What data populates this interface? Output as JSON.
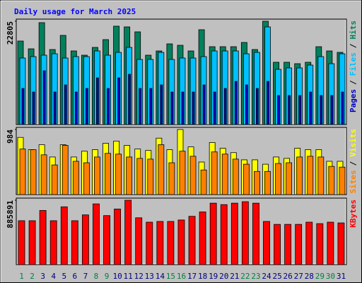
{
  "chart_data": [
    {
      "type": "bar",
      "title": "Daily usage for March 2025",
      "ylim": [
        0,
        22805
      ],
      "yticks": [
        22805
      ],
      "legend_separator": "/",
      "series": [
        {
          "name": "Hits",
          "color": "#00805c",
          "values": [
            18432,
            16713,
            22493,
            16557,
            19681,
            16245,
            15308,
            17026,
            18744,
            21712,
            21556,
            20462,
            15308,
            16245,
            17807,
            17494,
            16245,
            20931,
            17182,
            17182,
            17182,
            18119,
            16557,
            22805,
            13746,
            13746,
            13433,
            13746,
            17182,
            16245,
            15932
          ]
        },
        {
          "name": "Files",
          "color": "#00c0ff",
          "values": [
            14683,
            14995,
            15308,
            15620,
            14683,
            14995,
            14995,
            16245,
            15308,
            15932,
            17026,
            14370,
            14370,
            15932,
            14370,
            14683,
            14683,
            14995,
            16245,
            16245,
            16245,
            15620,
            15932,
            21556,
            12184,
            12496,
            12496,
            13121,
            14995,
            13433,
            15620
          ]
        },
        {
          "name": "Pages",
          "color": "#0000c0",
          "values": [
            7966,
            7185,
            11871,
            7185,
            8747,
            7185,
            7966,
            10309,
            7966,
            10309,
            11090,
            7966,
            7966,
            8747,
            7185,
            7185,
            7185,
            8747,
            7185,
            7966,
            9528,
            8747,
            7966,
            9528,
            6404,
            6404,
            6404,
            7185,
            6404,
            6404,
            7185
          ]
        }
      ]
    },
    {
      "type": "bar",
      "ylim": [
        0,
        984
      ],
      "yticks": [
        984
      ],
      "legend_separator": "/",
      "series": [
        {
          "name": "Visits",
          "color": "#ffff00",
          "values": [
            864,
            678,
            754,
            568,
            754,
            568,
            656,
            678,
            776,
            809,
            743,
            689,
            667,
            853,
            678,
            984,
            721,
            492,
            787,
            700,
            634,
            525,
            525,
            459,
            568,
            547,
            700,
            678,
            678,
            503,
            503
          ]
        },
        {
          "name": "Sites",
          "color": "#ff8000",
          "values": [
            689,
            678,
            601,
            448,
            743,
            503,
            481,
            568,
            623,
            612,
            568,
            547,
            536,
            754,
            481,
            656,
            579,
            372,
            645,
            612,
            536,
            459,
            350,
            350,
            470,
            481,
            568,
            579,
            568,
            426,
            415
          ]
        }
      ]
    },
    {
      "type": "bar",
      "ylim": [
        0,
        885891
      ],
      "yticks": [
        885891
      ],
      "categories": [
        "1",
        "2",
        "3",
        "4",
        "5",
        "6",
        "7",
        "8",
        "9",
        "10",
        "11",
        "12",
        "13",
        "14",
        "15",
        "16",
        "17",
        "18",
        "19",
        "20",
        "21",
        "22",
        "23",
        "24",
        "25",
        "26",
        "27",
        "28",
        "29",
        "30",
        "31"
      ],
      "category_colors": [
        "#008040",
        "#008040",
        "#000080",
        "#000080",
        "#000080",
        "#000080",
        "#000080",
        "#008040",
        "#008040",
        "#000080",
        "#000080",
        "#000080",
        "#000080",
        "#000080",
        "#008040",
        "#008040",
        "#000080",
        "#000080",
        "#000080",
        "#000080",
        "#000080",
        "#008040",
        "#008040",
        "#000080",
        "#000080",
        "#000080",
        "#000080",
        "#000080",
        "#008040",
        "#008040",
        "#000080"
      ],
      "series": [
        {
          "name": "KBytes",
          "color": "#ff0000",
          "values": [
            604020,
            604020,
            744958,
            604020,
            795293,
            604020,
            684556,
            835561,
            674489,
            765092,
            885891,
            644288,
            583886,
            593953,
            593953,
            614087,
            664422,
            724824,
            845628,
            825494,
            845628,
            865762,
            845628,
            593953,
            553685,
            553685,
            553685,
            583886,
            563752,
            583886,
            573819
          ]
        }
      ]
    }
  ]
}
